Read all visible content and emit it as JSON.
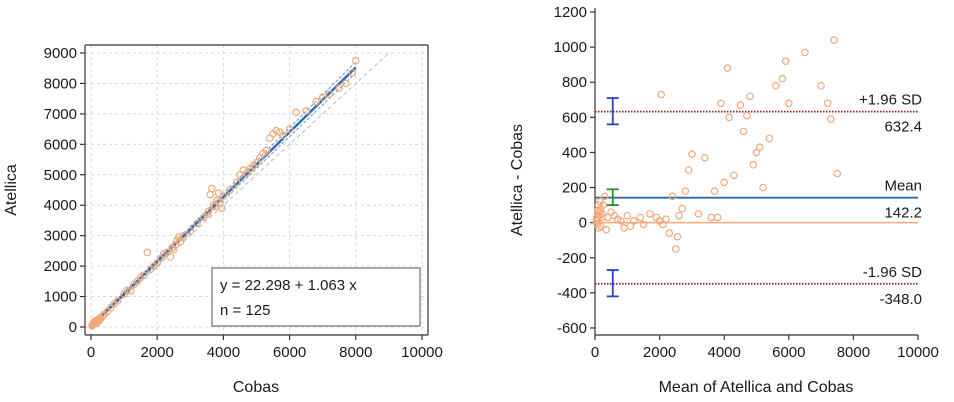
{
  "chart_data": [
    {
      "type": "scatter",
      "xlabel": "Cobas",
      "ylabel": "Atellica",
      "xlim": [
        0,
        10000
      ],
      "ylim": [
        0,
        9000
      ],
      "xticks": [
        0,
        2000,
        4000,
        6000,
        8000,
        10000
      ],
      "yticks": [
        0,
        1000,
        2000,
        3000,
        4000,
        5000,
        6000,
        7000,
        8000,
        9000
      ],
      "grid": true,
      "regression": {
        "intercept": 22.298,
        "slope": 1.063,
        "x_range": [
          0,
          8000
        ]
      },
      "annotation": {
        "equation": "y = 22.298 + 1.063 x",
        "n": "n = 125"
      },
      "colors": {
        "points": "#f2a97a",
        "regression": "#2a6fb8",
        "ci": "#6f8fc4",
        "identity": "#bbbbbb"
      },
      "points": [
        [
          30,
          40
        ],
        [
          50,
          60
        ],
        [
          60,
          90
        ],
        [
          70,
          110
        ],
        [
          80,
          130
        ],
        [
          90,
          150
        ],
        [
          100,
          110
        ],
        [
          110,
          170
        ],
        [
          120,
          190
        ],
        [
          130,
          150
        ],
        [
          140,
          200
        ],
        [
          150,
          170
        ],
        [
          160,
          210
        ],
        [
          170,
          120
        ],
        [
          180,
          160
        ],
        [
          200,
          230
        ],
        [
          210,
          200
        ],
        [
          220,
          180
        ],
        [
          240,
          260
        ],
        [
          260,
          220
        ],
        [
          280,
          300
        ],
        [
          300,
          280
        ],
        [
          350,
          360
        ],
        [
          400,
          420
        ],
        [
          500,
          510
        ],
        [
          600,
          640
        ],
        [
          700,
          760
        ],
        [
          800,
          860
        ],
        [
          1000,
          1080
        ],
        [
          1100,
          1200
        ],
        [
          1200,
          1180
        ],
        [
          1300,
          1400
        ],
        [
          1400,
          1500
        ],
        [
          1500,
          1620
        ],
        [
          1600,
          1700
        ],
        [
          1700,
          2450
        ],
        [
          1800,
          1900
        ],
        [
          1900,
          2000
        ],
        [
          2000,
          2100
        ],
        [
          2100,
          2250
        ],
        [
          2200,
          2400
        ],
        [
          2300,
          2450
        ],
        [
          2400,
          2300
        ],
        [
          2450,
          2600
        ],
        [
          2500,
          2550
        ],
        [
          2550,
          2700
        ],
        [
          2600,
          2850
        ],
        [
          2650,
          2950
        ],
        [
          2700,
          2800
        ],
        [
          2800,
          3000
        ],
        [
          3000,
          3150
        ],
        [
          3200,
          3400
        ],
        [
          3400,
          3600
        ],
        [
          3500,
          3700
        ],
        [
          3550,
          3800
        ],
        [
          3600,
          4350
        ],
        [
          3650,
          4550
        ],
        [
          3700,
          4000
        ],
        [
          3750,
          3950
        ],
        [
          3800,
          4150
        ],
        [
          3850,
          4400
        ],
        [
          3900,
          4100
        ],
        [
          3950,
          3900
        ],
        [
          4000,
          4300
        ],
        [
          4200,
          4500
        ],
        [
          4400,
          4750
        ],
        [
          4500,
          5000
        ],
        [
          4600,
          5150
        ],
        [
          4700,
          5050
        ],
        [
          4800,
          5200
        ],
        [
          4900,
          5300
        ],
        [
          5000,
          5400
        ],
        [
          5100,
          5550
        ],
        [
          5200,
          5700
        ],
        [
          5300,
          5800
        ],
        [
          5400,
          6200
        ],
        [
          5500,
          6350
        ],
        [
          5600,
          6450
        ],
        [
          5700,
          6400
        ],
        [
          5800,
          6300
        ],
        [
          6000,
          6500
        ],
        [
          6200,
          7050
        ],
        [
          6500,
          7100
        ],
        [
          6800,
          7400
        ],
        [
          7000,
          7550
        ],
        [
          7200,
          7650
        ],
        [
          7500,
          7850
        ],
        [
          7700,
          8000
        ],
        [
          7900,
          8350
        ],
        [
          8000,
          8750
        ]
      ]
    },
    {
      "type": "scatter",
      "xlabel": "Mean of Atellica and Cobas",
      "ylabel": "Atellica - Cobas",
      "xlim": [
        0,
        10000
      ],
      "ylim": [
        -600,
        1200
      ],
      "xticks": [
        0,
        2000,
        4000,
        6000,
        8000,
        10000
      ],
      "yticks": [
        -600,
        -400,
        -200,
        0,
        200,
        400,
        600,
        800,
        1000,
        1200
      ],
      "grid": false,
      "lines": [
        {
          "label": "+1.96 SD",
          "value_label": "632.4",
          "value": 632.4,
          "color": "#8b1a1a"
        },
        {
          "label": "Mean",
          "value_label": "142.2",
          "value": 142.2,
          "color": "#2e6e9e"
        },
        {
          "label": "-1.96 SD",
          "value_label": "-348.0",
          "value": -348.0,
          "color": "#8b1a1a"
        }
      ],
      "zero_line": {
        "value": 0,
        "color": "#f2a97a"
      },
      "error_bars": [
        {
          "x": 550,
          "low": 560,
          "high": 710,
          "color": "#2b3fd0"
        },
        {
          "x": 550,
          "low": 100,
          "high": 190,
          "color": "#2a8a2a"
        },
        {
          "x": 550,
          "low": -420,
          "high": -270,
          "color": "#2b3fd0"
        }
      ],
      "colors": {
        "points": "#f2a97a"
      },
      "points": [
        [
          40,
          10
        ],
        [
          60,
          30
        ],
        [
          70,
          -10
        ],
        [
          80,
          50
        ],
        [
          90,
          70
        ],
        [
          100,
          20
        ],
        [
          110,
          100
        ],
        [
          120,
          -30
        ],
        [
          130,
          40
        ],
        [
          150,
          60
        ],
        [
          160,
          120
        ],
        [
          170,
          80
        ],
        [
          180,
          -20
        ],
        [
          200,
          30
        ],
        [
          220,
          50
        ],
        [
          250,
          100
        ],
        [
          300,
          150
        ],
        [
          350,
          -40
        ],
        [
          400,
          30
        ],
        [
          500,
          60
        ],
        [
          600,
          40
        ],
        [
          700,
          20
        ],
        [
          800,
          10
        ],
        [
          900,
          -30
        ],
        [
          1000,
          40
        ],
        [
          1100,
          -20
        ],
        [
          1200,
          10
        ],
        [
          1400,
          30
        ],
        [
          1500,
          -10
        ],
        [
          1700,
          50
        ],
        [
          1900,
          30
        ],
        [
          2000,
          10
        ],
        [
          2050,
          730
        ],
        [
          2100,
          -10
        ],
        [
          2200,
          20
        ],
        [
          2300,
          -60
        ],
        [
          2400,
          150
        ],
        [
          2500,
          -150
        ],
        [
          2550,
          -80
        ],
        [
          2600,
          40
        ],
        [
          2700,
          80
        ],
        [
          2800,
          180
        ],
        [
          2900,
          300
        ],
        [
          3000,
          390
        ],
        [
          3200,
          50
        ],
        [
          3400,
          370
        ],
        [
          3600,
          30
        ],
        [
          3700,
          180
        ],
        [
          3800,
          30
        ],
        [
          3900,
          680
        ],
        [
          4000,
          230
        ],
        [
          4100,
          880
        ],
        [
          4150,
          600
        ],
        [
          4300,
          270
        ],
        [
          4500,
          670
        ],
        [
          4600,
          520
        ],
        [
          4700,
          610
        ],
        [
          4800,
          720
        ],
        [
          4900,
          330
        ],
        [
          5000,
          400
        ],
        [
          5100,
          430
        ],
        [
          5200,
          200
        ],
        [
          5400,
          480
        ],
        [
          5600,
          780
        ],
        [
          5800,
          820
        ],
        [
          5900,
          920
        ],
        [
          6000,
          680
        ],
        [
          6500,
          970
        ],
        [
          7000,
          780
        ],
        [
          7200,
          680
        ],
        [
          7300,
          590
        ],
        [
          7400,
          1040
        ],
        [
          7500,
          280
        ]
      ]
    }
  ]
}
